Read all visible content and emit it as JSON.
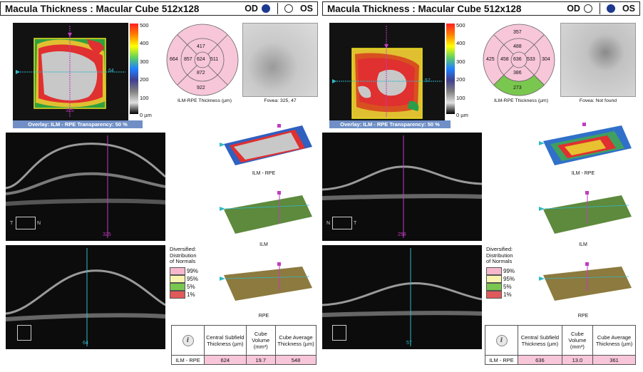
{
  "od": {
    "title": "Macula Thickness : Macular Cube 512x128",
    "eye_od": "OD",
    "eye_os": "OS",
    "selected": "OD",
    "overlay_label": "Overlay: ILM - RPE  Transparency: 50 %",
    "scale_labels": [
      "500",
      "400",
      "300",
      "200",
      "100",
      "0 µm"
    ],
    "map_h_index": "64",
    "map_v_index": "325",
    "etdrs": {
      "center": "624",
      "inner_sup": "417",
      "inner_nas": "511",
      "inner_inf": "872",
      "inner_tem": "857",
      "outer_sup": "",
      "outer_nas": "",
      "outer_inf": "922",
      "outer_tem": "664"
    },
    "etdrs_caption": "ILM-RPE Thickness (µm)",
    "fovea_caption": "Fovea: 325, 47",
    "bscan1_num": "325",
    "bscan2_num": "64",
    "orient_t": "T",
    "orient_n": "N",
    "surf1_caption": "ILM - RPE",
    "surf2_caption": "ILM",
    "surf3_caption": "RPE",
    "legend_title": [
      "Diversified:",
      "Distribution",
      "of Normals"
    ],
    "legend": [
      {
        "pct": "99%",
        "color": "#f7b8cd"
      },
      {
        "pct": "95%",
        "color": "#f9f3b0"
      },
      {
        "pct": "5%",
        "color": "#7ac74f"
      },
      {
        "pct": "1%",
        "color": "#e05a5a"
      }
    ],
    "table_headers": [
      "Central Subfield Thickness (µm)",
      "Cube Volume (mm³)",
      "Cube Average Thickness (µm)"
    ],
    "row_label": "ILM - RPE",
    "csf": "624",
    "volume": "19.7",
    "avg": "548"
  },
  "os": {
    "title": "Macula Thickness : Macular Cube 512x128",
    "eye_od": "OD",
    "eye_os": "OS",
    "selected": "OS",
    "overlay_label": "Overlay: ILM - RPE  Transparency: 50 %",
    "scale_labels": [
      "500",
      "400",
      "300",
      "200",
      "100",
      "0 µm"
    ],
    "map_h_index": "57",
    "map_v_index": "",
    "etdrs": {
      "center": "636",
      "inner_sup": "488",
      "inner_nas": "533",
      "inner_inf": "386",
      "inner_tem": "458",
      "outer_sup": "357",
      "outer_nas": "304",
      "outer_inf": "273",
      "outer_tem": "425"
    },
    "etdrs_caption": "ILM-RPE Thickness (µm)",
    "fovea_caption": "Fovea: Not found",
    "bscan1_num": "258",
    "bscan2_num": "57",
    "orient_t": "T",
    "orient_n": "N",
    "surf1_caption": "ILM - RPE",
    "surf2_caption": "ILM",
    "surf3_caption": "RPE",
    "legend_title": [
      "Diversified:",
      "Distribution",
      "of Normals"
    ],
    "legend": [
      {
        "pct": "99%",
        "color": "#f7b8cd"
      },
      {
        "pct": "95%",
        "color": "#f9f3b0"
      },
      {
        "pct": "5%",
        "color": "#7ac74f"
      },
      {
        "pct": "1%",
        "color": "#e05a5a"
      }
    ],
    "table_headers": [
      "Central Subfield Thickness (µm)",
      "Cube Volume (mm³)",
      "Cube Average Thickness (µm)"
    ],
    "row_label": "ILM - RPE",
    "csf": "636",
    "volume": "13.0",
    "avg": "361"
  },
  "colors": {
    "normal_pink": "#f7c6d8",
    "low_green": "#7ac74f",
    "accent_magenta": "#c23cc2",
    "accent_cyan": "#32b8c8",
    "overlay_blue": "#6f8fc6"
  }
}
